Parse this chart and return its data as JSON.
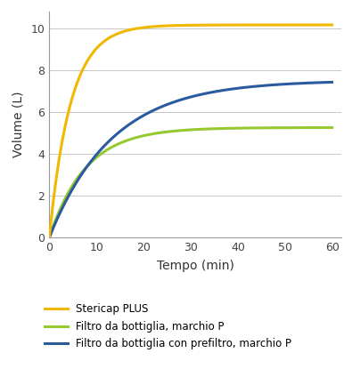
{
  "title": "",
  "xlabel": "Tempo (min)",
  "ylabel": "Volume (L)",
  "xlim": [
    0,
    62
  ],
  "ylim": [
    0,
    10.8
  ],
  "xticks": [
    0,
    10,
    20,
    30,
    40,
    50,
    60
  ],
  "yticks": [
    0,
    2,
    4,
    6,
    8,
    10
  ],
  "background_color": "#ffffff",
  "grid_color": "#c8c8c8",
  "colors": {
    "stericap": "#f0b800",
    "filtro_p": "#96c832",
    "filtro_prefiltro": "#2b5a9e"
  },
  "legend": [
    {
      "label": "Stericap PLUS",
      "color": "#f0b800"
    },
    {
      "label": "Filtro da bottiglia, marchio P",
      "color": "#96c832"
    },
    {
      "label": "Filtro da bottiglia con prefiltro, marchio P",
      "color": "#2b5a9e"
    }
  ],
  "stericap_params": {
    "A": 10.15,
    "k": 0.22
  },
  "filtro_p_params": {
    "A": 5.25,
    "k": 0.13
  },
  "filtro_prefiltro_params": {
    "A": 7.5,
    "k": 0.075
  }
}
